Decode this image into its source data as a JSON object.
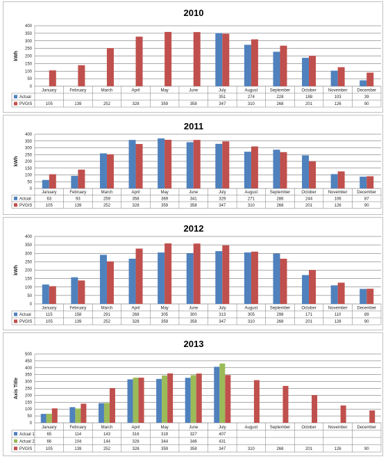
{
  "chart_data": [
    {
      "type": "bar",
      "title": "2010",
      "ylabel": "kWh",
      "ylim": [
        0,
        400
      ],
      "ytick_step": 50,
      "categories": [
        "January",
        "February",
        "March",
        "April",
        "May",
        "June",
        "July",
        "August",
        "September",
        "October",
        "November",
        "December"
      ],
      "series": [
        {
          "name": "Actual",
          "color": "#4f81bd",
          "values": [
            null,
            null,
            null,
            null,
            null,
            null,
            351,
            274,
            228,
            188,
            103,
            39
          ]
        },
        {
          "name": "PVGIS",
          "color": "#c0504d",
          "values": [
            105,
            139,
            252,
            328,
            359,
            358,
            347,
            310,
            268,
            201,
            126,
            90
          ]
        }
      ]
    },
    {
      "type": "bar",
      "title": "2011",
      "ylabel": "kWh",
      "ylim": [
        0,
        400
      ],
      "ytick_step": 50,
      "categories": [
        "January",
        "February",
        "March",
        "April",
        "May",
        "June",
        "July",
        "August",
        "September",
        "October",
        "November",
        "December"
      ],
      "series": [
        {
          "name": "Actual",
          "color": "#4f81bd",
          "values": [
            63,
            93,
            259,
            358,
            369,
            341,
            329,
            271,
            286,
            244,
            106,
            87
          ]
        },
        {
          "name": "PVGIS",
          "color": "#c0504d",
          "values": [
            105,
            139,
            252,
            328,
            359,
            358,
            347,
            310,
            268,
            201,
            126,
            90
          ]
        }
      ]
    },
    {
      "type": "bar",
      "title": "2012",
      "ylabel": "kWh",
      "ylim": [
        0,
        400
      ],
      "ytick_step": 50,
      "categories": [
        "January",
        "February",
        "March",
        "April",
        "May",
        "June",
        "July",
        "August",
        "September",
        "October",
        "November",
        "December"
      ],
      "series": [
        {
          "name": "Actual",
          "color": "#4f81bd",
          "values": [
            115,
            158,
            291,
            268,
            305,
            300,
            313,
            305,
            298,
            171,
            110,
            89
          ]
        },
        {
          "name": "PVGIS",
          "color": "#c0504d",
          "values": [
            105,
            139,
            252,
            328,
            359,
            358,
            347,
            310,
            268,
            201,
            126,
            90
          ]
        }
      ]
    },
    {
      "type": "bar",
      "title": "2013",
      "ylabel": "Axis Title",
      "ylim": [
        0,
        500
      ],
      "ytick_step": 50,
      "categories": [
        "January",
        "February",
        "March",
        "April",
        "May",
        "June",
        "July",
        "August",
        "September",
        "October",
        "November",
        "December"
      ],
      "series": [
        {
          "name": "Actual 1",
          "color": "#4f81bd",
          "values": [
            65,
            114,
            143,
            316,
            319,
            327,
            407,
            null,
            null,
            null,
            null,
            null
          ]
        },
        {
          "name": "Actual 2",
          "color": "#9bbb59",
          "values": [
            66,
            104,
            144,
            328,
            344,
            346,
            431,
            null,
            null,
            null,
            null,
            null
          ]
        },
        {
          "name": "PVGIS",
          "color": "#c0504d",
          "values": [
            105,
            139,
            252,
            328,
            359,
            358,
            347,
            310,
            268,
            201,
            126,
            90
          ]
        }
      ]
    }
  ]
}
